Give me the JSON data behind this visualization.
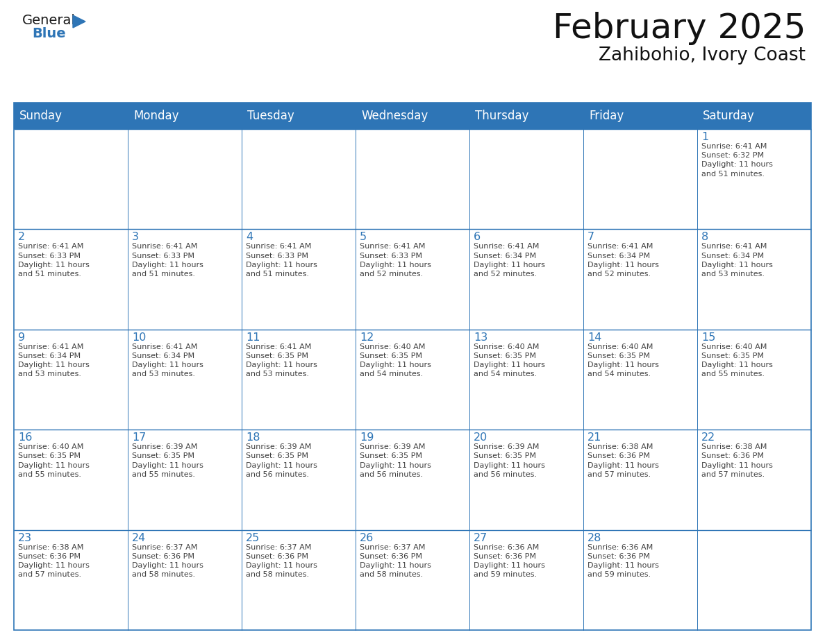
{
  "title": "February 2025",
  "subtitle": "Zahibohio, Ivory Coast",
  "header_bg_color": "#2E75B6",
  "header_text_color": "#FFFFFF",
  "border_color": "#2E75B6",
  "day_names": [
    "Sunday",
    "Monday",
    "Tuesday",
    "Wednesday",
    "Thursday",
    "Friday",
    "Saturday"
  ],
  "day_number_color": "#2E75B6",
  "cell_text_color": "#404040",
  "logo_general_color": "#1A1A1A",
  "logo_blue_color": "#2E75B6",
  "weeks": [
    [
      {
        "day": null,
        "text": ""
      },
      {
        "day": null,
        "text": ""
      },
      {
        "day": null,
        "text": ""
      },
      {
        "day": null,
        "text": ""
      },
      {
        "day": null,
        "text": ""
      },
      {
        "day": null,
        "text": ""
      },
      {
        "day": 1,
        "text": "Sunrise: 6:41 AM\nSunset: 6:32 PM\nDaylight: 11 hours\nand 51 minutes."
      }
    ],
    [
      {
        "day": 2,
        "text": "Sunrise: 6:41 AM\nSunset: 6:33 PM\nDaylight: 11 hours\nand 51 minutes."
      },
      {
        "day": 3,
        "text": "Sunrise: 6:41 AM\nSunset: 6:33 PM\nDaylight: 11 hours\nand 51 minutes."
      },
      {
        "day": 4,
        "text": "Sunrise: 6:41 AM\nSunset: 6:33 PM\nDaylight: 11 hours\nand 51 minutes."
      },
      {
        "day": 5,
        "text": "Sunrise: 6:41 AM\nSunset: 6:33 PM\nDaylight: 11 hours\nand 52 minutes."
      },
      {
        "day": 6,
        "text": "Sunrise: 6:41 AM\nSunset: 6:34 PM\nDaylight: 11 hours\nand 52 minutes."
      },
      {
        "day": 7,
        "text": "Sunrise: 6:41 AM\nSunset: 6:34 PM\nDaylight: 11 hours\nand 52 minutes."
      },
      {
        "day": 8,
        "text": "Sunrise: 6:41 AM\nSunset: 6:34 PM\nDaylight: 11 hours\nand 53 minutes."
      }
    ],
    [
      {
        "day": 9,
        "text": "Sunrise: 6:41 AM\nSunset: 6:34 PM\nDaylight: 11 hours\nand 53 minutes."
      },
      {
        "day": 10,
        "text": "Sunrise: 6:41 AM\nSunset: 6:34 PM\nDaylight: 11 hours\nand 53 minutes."
      },
      {
        "day": 11,
        "text": "Sunrise: 6:41 AM\nSunset: 6:35 PM\nDaylight: 11 hours\nand 53 minutes."
      },
      {
        "day": 12,
        "text": "Sunrise: 6:40 AM\nSunset: 6:35 PM\nDaylight: 11 hours\nand 54 minutes."
      },
      {
        "day": 13,
        "text": "Sunrise: 6:40 AM\nSunset: 6:35 PM\nDaylight: 11 hours\nand 54 minutes."
      },
      {
        "day": 14,
        "text": "Sunrise: 6:40 AM\nSunset: 6:35 PM\nDaylight: 11 hours\nand 54 minutes."
      },
      {
        "day": 15,
        "text": "Sunrise: 6:40 AM\nSunset: 6:35 PM\nDaylight: 11 hours\nand 55 minutes."
      }
    ],
    [
      {
        "day": 16,
        "text": "Sunrise: 6:40 AM\nSunset: 6:35 PM\nDaylight: 11 hours\nand 55 minutes."
      },
      {
        "day": 17,
        "text": "Sunrise: 6:39 AM\nSunset: 6:35 PM\nDaylight: 11 hours\nand 55 minutes."
      },
      {
        "day": 18,
        "text": "Sunrise: 6:39 AM\nSunset: 6:35 PM\nDaylight: 11 hours\nand 56 minutes."
      },
      {
        "day": 19,
        "text": "Sunrise: 6:39 AM\nSunset: 6:35 PM\nDaylight: 11 hours\nand 56 minutes."
      },
      {
        "day": 20,
        "text": "Sunrise: 6:39 AM\nSunset: 6:35 PM\nDaylight: 11 hours\nand 56 minutes."
      },
      {
        "day": 21,
        "text": "Sunrise: 6:38 AM\nSunset: 6:36 PM\nDaylight: 11 hours\nand 57 minutes."
      },
      {
        "day": 22,
        "text": "Sunrise: 6:38 AM\nSunset: 6:36 PM\nDaylight: 11 hours\nand 57 minutes."
      }
    ],
    [
      {
        "day": 23,
        "text": "Sunrise: 6:38 AM\nSunset: 6:36 PM\nDaylight: 11 hours\nand 57 minutes."
      },
      {
        "day": 24,
        "text": "Sunrise: 6:37 AM\nSunset: 6:36 PM\nDaylight: 11 hours\nand 58 minutes."
      },
      {
        "day": 25,
        "text": "Sunrise: 6:37 AM\nSunset: 6:36 PM\nDaylight: 11 hours\nand 58 minutes."
      },
      {
        "day": 26,
        "text": "Sunrise: 6:37 AM\nSunset: 6:36 PM\nDaylight: 11 hours\nand 58 minutes."
      },
      {
        "day": 27,
        "text": "Sunrise: 6:36 AM\nSunset: 6:36 PM\nDaylight: 11 hours\nand 59 minutes."
      },
      {
        "day": 28,
        "text": "Sunrise: 6:36 AM\nSunset: 6:36 PM\nDaylight: 11 hours\nand 59 minutes."
      },
      {
        "day": null,
        "text": ""
      }
    ]
  ],
  "fig_width": 11.88,
  "fig_height": 9.18,
  "dpi": 100
}
